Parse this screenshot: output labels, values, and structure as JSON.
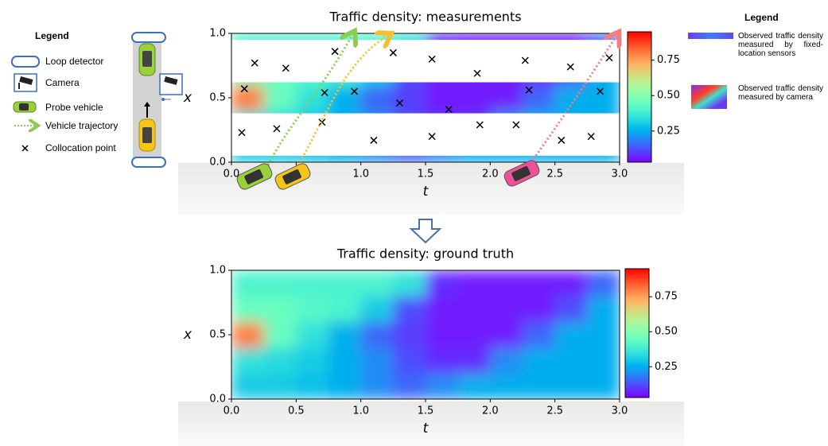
{
  "legend_left": {
    "title": "Legend",
    "items": [
      "Loop detector",
      "Camera",
      "Probe vehicle",
      "Vehicle trajectory",
      "Collocation point"
    ]
  },
  "legend_right": {
    "title": "Legend",
    "items": [
      "Observed traffic density measured by fixed-location sensors",
      "Observed traffic density measured by camera"
    ]
  },
  "chart_data": [
    {
      "type": "heatmap",
      "title": "Traffic density: measurements",
      "xlabel": "t",
      "ylabel": "x",
      "xlim": [
        0,
        3
      ],
      "ylim": [
        0,
        1
      ],
      "xticks": [
        {
          "value": 0,
          "label": "0.0"
        },
        0.5,
        {
          "value": 1,
          "label": "1.0"
        },
        1.5,
        {
          "value": 2,
          "label": "2.0"
        },
        2.5,
        {
          "value": 3,
          "label": "3.0"
        }
      ],
      "yticks": [
        {
          "value": 0,
          "label": "0.0"
        },
        0.5,
        {
          "value": 1,
          "label": "1.0"
        }
      ],
      "t_bins": [
        0,
        0.25,
        0.5,
        0.75,
        1,
        1.25,
        1.5,
        1.75,
        2,
        2.25,
        2.5,
        2.75,
        3
      ],
      "x_bins": [
        0,
        0.2,
        0.4,
        0.6,
        0.8,
        1
      ],
      "values": [
        [
          0.3,
          0.3,
          0.28,
          0.25,
          0.2,
          0.15,
          0.2,
          0.25,
          0.25,
          0.25,
          0.25,
          0.25
        ],
        [
          0.35,
          0.33,
          0.3,
          0.25,
          0.2,
          0.12,
          0.08,
          0.08,
          0.2,
          0.25,
          0.25,
          0.25
        ],
        [
          0.8,
          0.45,
          0.35,
          0.25,
          0.15,
          0.1,
          0.06,
          0.06,
          0.06,
          0.15,
          0.25,
          0.25
        ],
        [
          0.45,
          0.45,
          0.42,
          0.4,
          0.3,
          0.12,
          0.06,
          0.06,
          0.06,
          0.06,
          0.12,
          0.25
        ],
        [
          0.4,
          0.4,
          0.4,
          0.4,
          0.4,
          0.35,
          0.08,
          0.06,
          0.06,
          0.06,
          0.06,
          0.15
        ]
      ],
      "clim": [
        0.03,
        0.95
      ],
      "cticks": [
        0.25,
        {
          "value": 0.5,
          "label": "0.50"
        },
        0.75
      ],
      "colormap": "rainbow",
      "observed_bands": [
        [
          0,
          0.05
        ],
        [
          0.38,
          0.62
        ],
        [
          0.95,
          1
        ]
      ],
      "collocation_points": {
        "t": [
          0.1,
          0.18,
          0.42,
          0.8,
          0.72,
          0.95,
          1.25,
          1.3,
          1.55,
          1.68,
          1.9,
          2.27,
          2.3,
          2.62,
          2.85,
          2.92,
          0.08,
          0.35,
          0.7,
          1.1,
          1.55,
          1.92,
          2.2,
          2.55,
          2.78
        ],
        "x": [
          0.57,
          0.77,
          0.73,
          0.86,
          0.54,
          0.55,
          0.85,
          0.46,
          0.8,
          0.41,
          0.69,
          0.79,
          0.56,
          0.74,
          0.55,
          0.81,
          0.23,
          0.26,
          0.31,
          0.17,
          0.2,
          0.29,
          0.29,
          0.17,
          0.2
        ]
      }
    },
    {
      "type": "heatmap",
      "title": "Traffic density: ground truth",
      "xlabel": "t",
      "ylabel": "x",
      "xlim": [
        0,
        3
      ],
      "ylim": [
        0,
        1
      ],
      "xticks": [
        {
          "value": 0,
          "label": "0.0"
        },
        0.5,
        {
          "value": 1,
          "label": "1.0"
        },
        1.5,
        {
          "value": 2,
          "label": "2.0"
        },
        2.5,
        {
          "value": 3,
          "label": "3.0"
        }
      ],
      "yticks": [
        {
          "value": 0,
          "label": "0.0"
        },
        0.5,
        {
          "value": 1,
          "label": "1.0"
        }
      ],
      "t_bins": [
        0,
        0.25,
        0.5,
        0.75,
        1,
        1.25,
        1.5,
        1.75,
        2,
        2.25,
        2.5,
        2.75,
        3
      ],
      "x_bins": [
        0,
        0.2,
        0.4,
        0.6,
        0.8,
        1
      ],
      "values": [
        [
          0.3,
          0.3,
          0.28,
          0.25,
          0.2,
          0.15,
          0.2,
          0.25,
          0.25,
          0.25,
          0.25,
          0.25
        ],
        [
          0.35,
          0.33,
          0.3,
          0.25,
          0.2,
          0.12,
          0.08,
          0.08,
          0.2,
          0.25,
          0.25,
          0.25
        ],
        [
          0.8,
          0.45,
          0.35,
          0.25,
          0.15,
          0.1,
          0.06,
          0.06,
          0.06,
          0.15,
          0.25,
          0.25
        ],
        [
          0.45,
          0.45,
          0.42,
          0.4,
          0.3,
          0.12,
          0.06,
          0.06,
          0.06,
          0.06,
          0.12,
          0.25
        ],
        [
          0.4,
          0.4,
          0.4,
          0.4,
          0.4,
          0.35,
          0.08,
          0.06,
          0.06,
          0.06,
          0.06,
          0.15
        ]
      ],
      "clim": [
        0.03,
        0.95
      ],
      "cticks": [
        0.25,
        {
          "value": 0.5,
          "label": "0.50"
        },
        0.75
      ],
      "colormap": "rainbow"
    }
  ]
}
